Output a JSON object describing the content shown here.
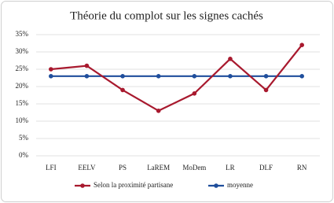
{
  "chart_data": {
    "type": "line",
    "title": "Théorie du complot sur les signes cachés",
    "categories": [
      "LFI",
      "EELV",
      "PS",
      "LaREM",
      "MoDem",
      "LR",
      "DLF",
      "RN"
    ],
    "series": [
      {
        "name": "Selon la proximité partisane",
        "color": "#a8192e",
        "values": [
          25,
          26,
          19,
          13,
          18,
          28,
          19,
          32
        ]
      },
      {
        "name": "moyenne",
        "color": "#1f4e9c",
        "values": [
          23,
          23,
          23,
          23,
          23,
          23,
          23,
          23
        ]
      }
    ],
    "ylim": [
      0,
      35
    ],
    "yticks": [
      {
        "value": 0,
        "label": "0%"
      },
      {
        "value": 5,
        "label": "5%"
      },
      {
        "value": 10,
        "label": "10%"
      },
      {
        "value": 15,
        "label": "15%"
      },
      {
        "value": 20,
        "label": "20%"
      },
      {
        "value": 25,
        "label": "25%"
      },
      {
        "value": 30,
        "label": "30%"
      },
      {
        "value": 35,
        "label": "35%"
      }
    ],
    "grid": true,
    "legend": "bottom"
  }
}
